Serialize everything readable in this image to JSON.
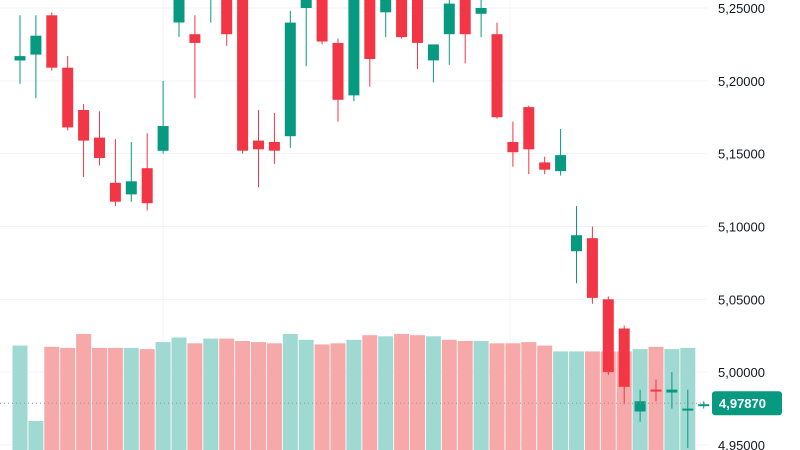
{
  "chart_data": {
    "type": "candlestick",
    "title": "",
    "xlabel": "",
    "ylabel": "",
    "ylim": [
      4.945,
      5.262
    ],
    "y_ticks": [
      "5,25000",
      "5,20000",
      "5,15000",
      "5,10000",
      "5,05000",
      "5,00000",
      "4,95000"
    ],
    "y_tick_values": [
      5.25,
      5.2,
      5.15,
      5.1,
      5.05,
      5.0,
      4.95
    ],
    "grid": true,
    "crosshair_value": 4.9787,
    "last_price_label": "4,97870",
    "colors": {
      "up": "#089981",
      "down": "#f23645",
      "volume_up": "#9fd9d1",
      "volume_down": "#f7a9a9",
      "grid": "#f0f3fa",
      "price_tag": "#089981",
      "crosshair": "#9598a1"
    },
    "candles": [
      {
        "o": 5.214,
        "h": 5.245,
        "l": 5.198,
        "c": 5.217,
        "dir": "up"
      },
      {
        "o": 5.218,
        "h": 5.245,
        "l": 5.188,
        "c": 5.231,
        "dir": "up"
      },
      {
        "o": 5.245,
        "h": 5.247,
        "l": 5.207,
        "c": 5.209,
        "dir": "down"
      },
      {
        "o": 5.209,
        "h": 5.217,
        "l": 5.166,
        "c": 5.168,
        "dir": "down"
      },
      {
        "o": 5.18,
        "h": 5.184,
        "l": 5.134,
        "c": 5.159,
        "dir": "down"
      },
      {
        "o": 5.161,
        "h": 5.179,
        "l": 5.142,
        "c": 5.147,
        "dir": "down"
      },
      {
        "o": 5.13,
        "h": 5.16,
        "l": 5.114,
        "c": 5.117,
        "dir": "down"
      },
      {
        "o": 5.122,
        "h": 5.158,
        "l": 5.117,
        "c": 5.131,
        "dir": "up"
      },
      {
        "o": 5.14,
        "h": 5.164,
        "l": 5.111,
        "c": 5.116,
        "dir": "down"
      },
      {
        "o": 5.152,
        "h": 5.2,
        "l": 5.15,
        "c": 5.169,
        "dir": "up"
      },
      {
        "o": 5.24,
        "h": 5.263,
        "l": 5.23,
        "c": 5.262,
        "dir": "up"
      },
      {
        "o": 5.232,
        "h": 5.245,
        "l": 5.188,
        "c": 5.226,
        "dir": "down"
      },
      {
        "o": 5.256,
        "h": 5.262,
        "l": 5.24,
        "c": 5.259,
        "dir": "up"
      },
      {
        "o": 5.262,
        "h": 5.262,
        "l": 5.224,
        "c": 5.232,
        "dir": "down"
      },
      {
        "o": 5.262,
        "h": 5.262,
        "l": 5.15,
        "c": 5.152,
        "dir": "down"
      },
      {
        "o": 5.159,
        "h": 5.18,
        "l": 5.127,
        "c": 5.153,
        "dir": "down"
      },
      {
        "o": 5.158,
        "h": 5.178,
        "l": 5.143,
        "c": 5.152,
        "dir": "down"
      },
      {
        "o": 5.162,
        "h": 5.248,
        "l": 5.154,
        "c": 5.24,
        "dir": "up"
      },
      {
        "o": 5.25,
        "h": 5.262,
        "l": 5.21,
        "c": 5.262,
        "dir": "up"
      },
      {
        "o": 5.262,
        "h": 5.262,
        "l": 5.225,
        "c": 5.227,
        "dir": "down"
      },
      {
        "o": 5.226,
        "h": 5.229,
        "l": 5.172,
        "c": 5.187,
        "dir": "down"
      },
      {
        "o": 5.19,
        "h": 5.262,
        "l": 5.186,
        "c": 5.262,
        "dir": "up"
      },
      {
        "o": 5.262,
        "h": 5.262,
        "l": 5.196,
        "c": 5.215,
        "dir": "down"
      },
      {
        "o": 5.247,
        "h": 5.262,
        "l": 5.23,
        "c": 5.262,
        "dir": "up"
      },
      {
        "o": 5.262,
        "h": 5.262,
        "l": 5.229,
        "c": 5.23,
        "dir": "down"
      },
      {
        "o": 5.262,
        "h": 5.262,
        "l": 5.208,
        "c": 5.226,
        "dir": "down"
      },
      {
        "o": 5.214,
        "h": 5.224,
        "l": 5.199,
        "c": 5.225,
        "dir": "up"
      },
      {
        "o": 5.232,
        "h": 5.262,
        "l": 5.211,
        "c": 5.253,
        "dir": "up"
      },
      {
        "o": 5.262,
        "h": 5.262,
        "l": 5.212,
        "c": 5.232,
        "dir": "down"
      },
      {
        "o": 5.246,
        "h": 5.262,
        "l": 5.23,
        "c": 5.25,
        "dir": "up"
      },
      {
        "o": 5.232,
        "h": 5.24,
        "l": 5.174,
        "c": 5.175,
        "dir": "down"
      },
      {
        "o": 5.158,
        "h": 5.172,
        "l": 5.141,
        "c": 5.151,
        "dir": "down"
      },
      {
        "o": 5.182,
        "h": 5.183,
        "l": 5.136,
        "c": 5.153,
        "dir": "down"
      },
      {
        "o": 5.144,
        "h": 5.148,
        "l": 5.136,
        "c": 5.139,
        "dir": "down"
      },
      {
        "o": 5.138,
        "h": 5.167,
        "l": 5.135,
        "c": 5.149,
        "dir": "up"
      },
      {
        "o": 5.083,
        "h": 5.114,
        "l": 5.061,
        "c": 5.094,
        "dir": "up"
      },
      {
        "o": 5.092,
        "h": 5.1,
        "l": 5.047,
        "c": 5.051,
        "dir": "down"
      },
      {
        "o": 5.05,
        "h": 5.052,
        "l": 4.998,
        "c": 5.0,
        "dir": "down"
      },
      {
        "o": 5.03,
        "h": 5.032,
        "l": 4.978,
        "c": 4.99,
        "dir": "down"
      },
      {
        "o": 4.973,
        "h": 4.988,
        "l": 4.966,
        "c": 4.98,
        "dir": "up"
      },
      {
        "o": 4.988,
        "h": 4.995,
        "l": 4.98,
        "c": 4.987,
        "dir": "down"
      },
      {
        "o": 4.986,
        "h": 5.0,
        "l": 4.975,
        "c": 4.988,
        "dir": "up"
      },
      {
        "o": 4.974,
        "h": 4.988,
        "l": 4.948,
        "c": 4.975,
        "dir": "up"
      },
      {
        "o": 4.977,
        "h": 4.98,
        "l": 4.975,
        "c": 4.978,
        "dir": "up"
      }
    ],
    "volume": [
      {
        "v": 0.9,
        "dir": "up"
      },
      {
        "v": 0.25,
        "dir": "up"
      },
      {
        "v": 0.89,
        "dir": "down"
      },
      {
        "v": 0.88,
        "dir": "down"
      },
      {
        "v": 1.0,
        "dir": "down"
      },
      {
        "v": 0.88,
        "dir": "down"
      },
      {
        "v": 0.88,
        "dir": "down"
      },
      {
        "v": 0.88,
        "dir": "up"
      },
      {
        "v": 0.87,
        "dir": "down"
      },
      {
        "v": 0.93,
        "dir": "up"
      },
      {
        "v": 0.97,
        "dir": "up"
      },
      {
        "v": 0.92,
        "dir": "down"
      },
      {
        "v": 0.96,
        "dir": "up"
      },
      {
        "v": 0.96,
        "dir": "down"
      },
      {
        "v": 0.94,
        "dir": "down"
      },
      {
        "v": 0.93,
        "dir": "down"
      },
      {
        "v": 0.92,
        "dir": "down"
      },
      {
        "v": 1.0,
        "dir": "up"
      },
      {
        "v": 0.95,
        "dir": "up"
      },
      {
        "v": 0.91,
        "dir": "down"
      },
      {
        "v": 0.92,
        "dir": "down"
      },
      {
        "v": 0.95,
        "dir": "up"
      },
      {
        "v": 0.99,
        "dir": "down"
      },
      {
        "v": 0.98,
        "dir": "up"
      },
      {
        "v": 1.0,
        "dir": "down"
      },
      {
        "v": 0.99,
        "dir": "down"
      },
      {
        "v": 0.98,
        "dir": "up"
      },
      {
        "v": 0.95,
        "dir": "down"
      },
      {
        "v": 0.94,
        "dir": "down"
      },
      {
        "v": 0.94,
        "dir": "up"
      },
      {
        "v": 0.92,
        "dir": "down"
      },
      {
        "v": 0.92,
        "dir": "down"
      },
      {
        "v": 0.93,
        "dir": "down"
      },
      {
        "v": 0.9,
        "dir": "down"
      },
      {
        "v": 0.85,
        "dir": "up"
      },
      {
        "v": 0.85,
        "dir": "up"
      },
      {
        "v": 0.85,
        "dir": "down"
      },
      {
        "v": 0.85,
        "dir": "down"
      },
      {
        "v": 0.85,
        "dir": "down"
      },
      {
        "v": 0.87,
        "dir": "up"
      },
      {
        "v": 0.89,
        "dir": "down"
      },
      {
        "v": 0.87,
        "dir": "up"
      },
      {
        "v": 0.88,
        "dir": "up"
      },
      {
        "v": 0.0,
        "dir": "up"
      }
    ]
  }
}
